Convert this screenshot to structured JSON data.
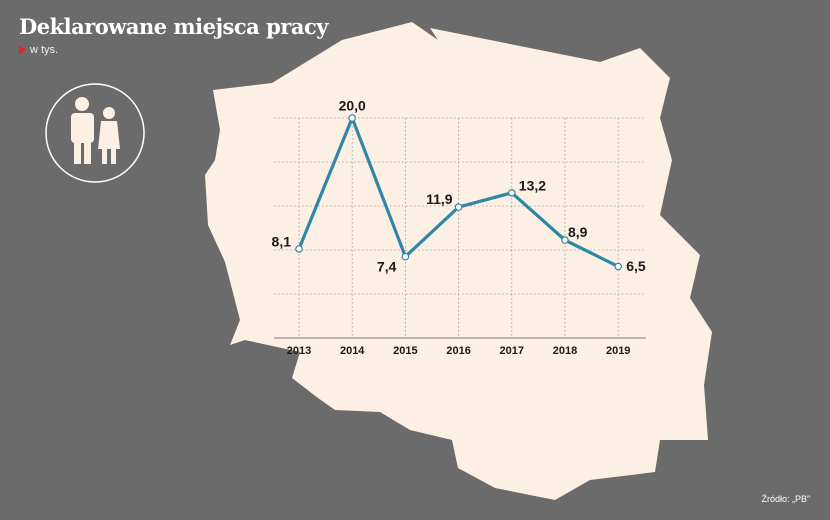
{
  "header": {
    "title": "Deklarowane miejsca pracy",
    "subtitle": "w tys."
  },
  "footer": {
    "source": "Źródło: „PB”"
  },
  "icons": {
    "people": "people-icon",
    "marker": "red-triangle-icon"
  },
  "colors": {
    "background": "#6b6b6b",
    "map_fill": "#fcefe3",
    "line": "#2f86a6",
    "marker": "#e3262e"
  },
  "chart_data": {
    "type": "line",
    "categories": [
      "2013",
      "2014",
      "2015",
      "2016",
      "2017",
      "2018",
      "2019"
    ],
    "values": [
      8.1,
      20.0,
      7.4,
      11.9,
      13.2,
      8.9,
      6.5
    ],
    "value_labels": [
      "8,1",
      "20,0",
      "7,4",
      "11,9",
      "13,2",
      "8,9",
      "6,5"
    ],
    "title": "Deklarowane miejsca pracy",
    "subtitle": "w tys.",
    "xlabel": "",
    "ylabel": "",
    "ylim": [
      0,
      20
    ],
    "grid": true,
    "legend": "none"
  }
}
